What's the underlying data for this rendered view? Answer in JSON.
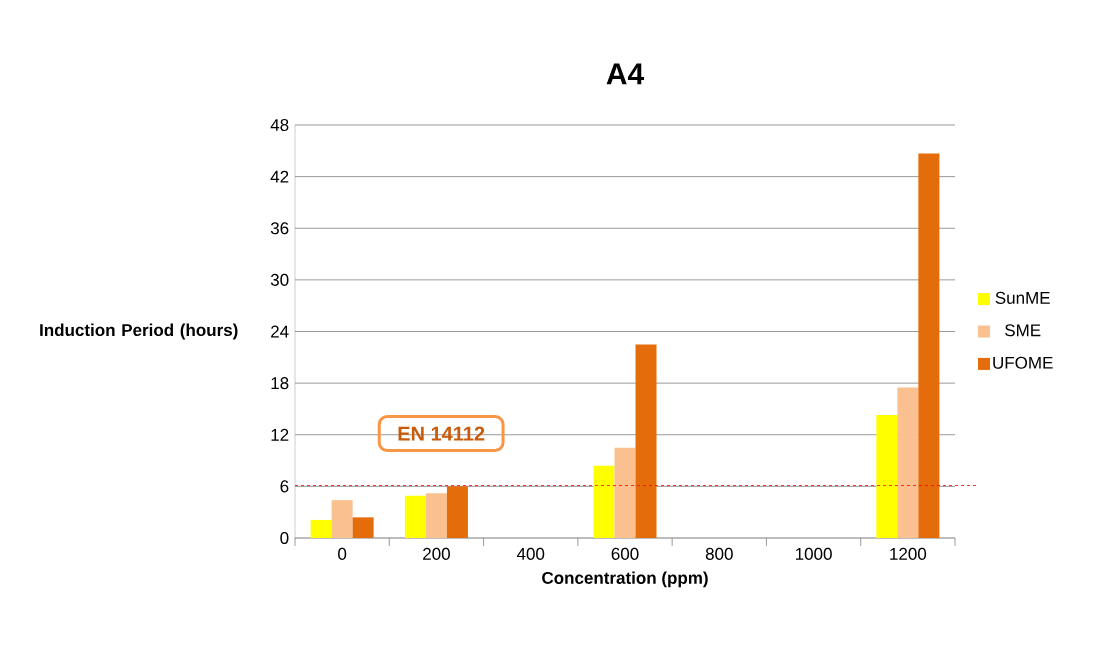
{
  "chart_data": {
    "type": "bar",
    "title": "A4",
    "xlabel": "Concentration (ppm)",
    "ylabel": "Induction Period (hours)",
    "categories": [
      "0",
      "200",
      "400",
      "600",
      "800",
      "1000",
      "1200"
    ],
    "series": [
      {
        "name": "SunME",
        "color": "#ffff00",
        "values": [
          2.1,
          4.9,
          null,
          8.4,
          null,
          null,
          14.3
        ]
      },
      {
        "name": "SME",
        "color": "#fac090",
        "values": [
          4.4,
          5.2,
          null,
          10.5,
          null,
          null,
          17.5
        ]
      },
      {
        "name": "UFOME",
        "color": "#e46c0a",
        "values": [
          2.4,
          6.0,
          null,
          22.5,
          null,
          null,
          44.7
        ]
      }
    ],
    "ylim": [
      0,
      48
    ],
    "yticks": [
      0,
      6,
      12,
      18,
      24,
      30,
      36,
      42,
      48
    ],
    "grid": "y",
    "legend": "right",
    "ref_lines": [
      {
        "axis": "y",
        "value": 6.1,
        "label": "EN  14112",
        "color": "#ff0000",
        "line_style": "dashed"
      }
    ]
  }
}
